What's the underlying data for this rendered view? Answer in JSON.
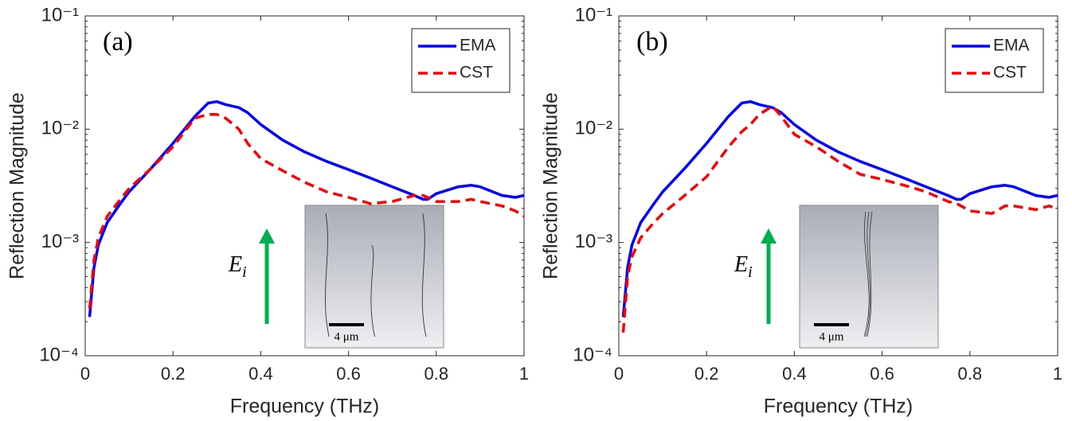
{
  "chart_data": [
    {
      "type": "line",
      "panel_label": "(a)",
      "xlabel": "Frequency (THz)",
      "ylabel": "Reflection Magnitude",
      "log_y": true,
      "legend": "upper right",
      "xlim": [
        0,
        1
      ],
      "ylim": [
        0.0001,
        0.1
      ],
      "xticks": [
        0,
        0.2,
        0.4,
        0.6,
        0.8,
        1
      ],
      "yticks": [
        {
          "value": 0.0001,
          "label": "10⁻⁴"
        },
        {
          "value": 0.001,
          "label": "10⁻³"
        },
        {
          "value": 0.01,
          "label": "10⁻²"
        },
        {
          "value": 0.1,
          "label": "10⁻¹"
        }
      ],
      "field_symbol": "E",
      "field_subscript": "i",
      "scale_bar": "4 μm",
      "x": [
        0.01,
        0.02,
        0.03,
        0.05,
        0.08,
        0.1,
        0.15,
        0.2,
        0.25,
        0.28,
        0.3,
        0.32,
        0.35,
        0.37,
        0.4,
        0.45,
        0.5,
        0.55,
        0.6,
        0.65,
        0.7,
        0.75,
        0.77,
        0.78,
        0.8,
        0.85,
        0.88,
        0.9,
        0.95,
        0.98,
        1.0
      ],
      "series": [
        {
          "name": "EMA",
          "color": "#0000ff",
          "line_style": "solid",
          "values": [
            0.00022,
            0.0006,
            0.00095,
            0.0015,
            0.0022,
            0.0028,
            0.0045,
            0.0075,
            0.013,
            0.017,
            0.0175,
            0.0165,
            0.0155,
            0.014,
            0.011,
            0.008,
            0.0063,
            0.0052,
            0.0044,
            0.0037,
            0.0031,
            0.0026,
            0.0024,
            0.0024,
            0.0027,
            0.0031,
            0.0032,
            0.0031,
            0.0026,
            0.0025,
            0.0026
          ]
        },
        {
          "name": "CST",
          "color": "#ff0000",
          "line_style": "dashed",
          "values": [
            0.00026,
            0.0007,
            0.0011,
            0.0017,
            0.0024,
            0.003,
            0.0045,
            0.007,
            0.0125,
            0.0135,
            0.0135,
            0.0125,
            0.01,
            0.0075,
            0.0055,
            0.0043,
            0.0034,
            0.0028,
            0.0025,
            0.0022,
            0.0023,
            0.0026,
            0.0026,
            0.0025,
            0.0023,
            0.0023,
            0.0024,
            0.0023,
            0.0021,
            0.0019,
            0.0017
          ]
        }
      ]
    },
    {
      "type": "line",
      "panel_label": "(b)",
      "xlabel": "Frequency (THz)",
      "ylabel": "Reflection Magnitude",
      "log_y": true,
      "legend": "upper right",
      "xlim": [
        0,
        1
      ],
      "ylim": [
        0.0001,
        0.1
      ],
      "xticks": [
        0,
        0.2,
        0.4,
        0.6,
        0.8,
        1
      ],
      "yticks": [
        {
          "value": 0.0001,
          "label": "10⁻⁴"
        },
        {
          "value": 0.001,
          "label": "10⁻³"
        },
        {
          "value": 0.01,
          "label": "10⁻²"
        },
        {
          "value": 0.1,
          "label": "10⁻¹"
        }
      ],
      "field_symbol": "E",
      "field_subscript": "i",
      "scale_bar": "4 μm",
      "x": [
        0.01,
        0.02,
        0.03,
        0.05,
        0.08,
        0.1,
        0.15,
        0.2,
        0.25,
        0.28,
        0.3,
        0.32,
        0.35,
        0.37,
        0.4,
        0.45,
        0.5,
        0.55,
        0.6,
        0.65,
        0.7,
        0.75,
        0.77,
        0.78,
        0.8,
        0.85,
        0.88,
        0.9,
        0.95,
        0.98,
        1.0
      ],
      "series": [
        {
          "name": "EMA",
          "color": "#0000ff",
          "line_style": "solid",
          "values": [
            0.00022,
            0.0006,
            0.00095,
            0.0015,
            0.0022,
            0.0028,
            0.0045,
            0.0075,
            0.013,
            0.017,
            0.0175,
            0.0165,
            0.0155,
            0.014,
            0.011,
            0.008,
            0.0063,
            0.0052,
            0.0044,
            0.0037,
            0.0031,
            0.0026,
            0.0024,
            0.0024,
            0.0027,
            0.0031,
            0.0032,
            0.0031,
            0.0026,
            0.0025,
            0.0026
          ]
        },
        {
          "name": "CST",
          "color": "#ff0000",
          "line_style": "dashed",
          "values": [
            0.00016,
            0.0005,
            0.00075,
            0.0011,
            0.0015,
            0.0018,
            0.0026,
            0.0038,
            0.007,
            0.0095,
            0.011,
            0.0135,
            0.016,
            0.013,
            0.009,
            0.007,
            0.0052,
            0.004,
            0.0036,
            0.0032,
            0.0028,
            0.0023,
            0.0022,
            0.0021,
            0.0019,
            0.0018,
            0.0021,
            0.0021,
            0.00195,
            0.0021,
            0.002
          ]
        }
      ]
    }
  ]
}
